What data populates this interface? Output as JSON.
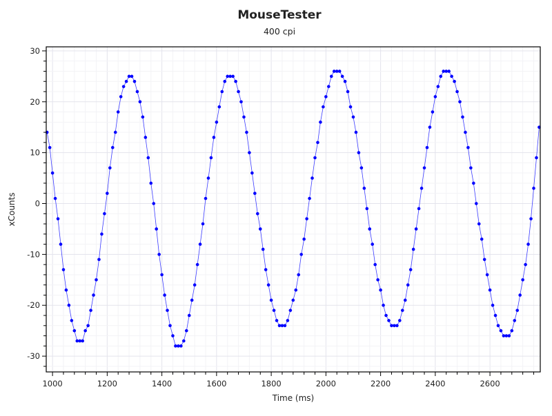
{
  "chart_data": {
    "type": "scatter",
    "title": "MouseTester",
    "subtitle": "400 cpi",
    "xlabel": "Time (ms)",
    "ylabel": "xCounts",
    "xlim": [
      977,
      2784
    ],
    "ylim": [
      -33.1,
      30.8
    ],
    "x_ticks": [
      1000,
      1200,
      1400,
      1600,
      1800,
      2000,
      2200,
      2400,
      2600
    ],
    "y_ticks": [
      -30,
      -20,
      -10,
      0,
      10,
      20,
      30
    ],
    "x_minor_step": 40,
    "y_minor_step": 2,
    "grid": true,
    "legend": "none",
    "colors": {
      "points": "#0000ff",
      "line": "#3b3bff",
      "grid_major": "#e3e3ec",
      "grid_minor": "#f3f3f6",
      "axis": "#000000"
    },
    "series": [
      {
        "name": "xCounts",
        "x": [
          980,
          990,
          1000,
          1010,
          1020,
          1030,
          1040,
          1050,
          1060,
          1070,
          1080,
          1090,
          1100,
          1110,
          1120,
          1130,
          1140,
          1150,
          1160,
          1170,
          1180,
          1190,
          1200,
          1210,
          1220,
          1230,
          1240,
          1250,
          1260,
          1270,
          1280,
          1290,
          1300,
          1310,
          1320,
          1330,
          1340,
          1350,
          1360,
          1370,
          1380,
          1390,
          1400,
          1410,
          1420,
          1430,
          1440,
          1450,
          1460,
          1470,
          1480,
          1490,
          1500,
          1510,
          1520,
          1530,
          1540,
          1550,
          1560,
          1570,
          1580,
          1590,
          1600,
          1610,
          1620,
          1630,
          1640,
          1650,
          1660,
          1670,
          1680,
          1690,
          1700,
          1710,
          1720,
          1730,
          1740,
          1750,
          1760,
          1770,
          1780,
          1790,
          1800,
          1810,
          1820,
          1830,
          1840,
          1850,
          1860,
          1870,
          1880,
          1890,
          1900,
          1910,
          1920,
          1930,
          1940,
          1950,
          1960,
          1970,
          1980,
          1990,
          2000,
          2010,
          2020,
          2030,
          2040,
          2050,
          2060,
          2070,
          2080,
          2090,
          2100,
          2110,
          2120,
          2130,
          2140,
          2150,
          2160,
          2170,
          2180,
          2190,
          2200,
          2210,
          2220,
          2230,
          2240,
          2250,
          2260,
          2270,
          2280,
          2290,
          2300,
          2310,
          2320,
          2330,
          2340,
          2350,
          2360,
          2370,
          2380,
          2390,
          2400,
          2410,
          2420,
          2430,
          2440,
          2450,
          2460,
          2470,
          2480,
          2490,
          2500,
          2510,
          2520,
          2530,
          2540,
          2550,
          2560,
          2570,
          2580,
          2590,
          2600,
          2610,
          2620,
          2630,
          2640,
          2650,
          2660,
          2670,
          2680,
          2690,
          2700,
          2710,
          2720,
          2730,
          2740,
          2750,
          2760,
          2770,
          2780
        ],
        "y": [
          14,
          11,
          6,
          1,
          -3,
          -8,
          -13,
          -17,
          -20,
          -23,
          -25,
          -27,
          -27,
          -27,
          -25,
          -24,
          -21,
          -18,
          -15,
          -11,
          -6,
          -2,
          2,
          7,
          11,
          14,
          18,
          21,
          23,
          24,
          25,
          25,
          24,
          22,
          20,
          17,
          13,
          9,
          4,
          0,
          -5,
          -10,
          -14,
          -18,
          -21,
          -24,
          -26,
          -28,
          -28,
          -28,
          -27,
          -25,
          -22,
          -19,
          -16,
          -12,
          -8,
          -4,
          1,
          5,
          9,
          13,
          16,
          19,
          22,
          24,
          25,
          25,
          25,
          24,
          22,
          20,
          17,
          14,
          10,
          6,
          2,
          -2,
          -5,
          -9,
          -13,
          -16,
          -19,
          -21,
          -23,
          -24,
          -24,
          -24,
          -23,
          -21,
          -19,
          -17,
          -14,
          -10,
          -7,
          -3,
          1,
          5,
          9,
          12,
          16,
          19,
          21,
          23,
          25,
          26,
          26,
          26,
          25,
          24,
          22,
          19,
          17,
          14,
          10,
          7,
          3,
          -1,
          -5,
          -8,
          -12,
          -15,
          -17,
          -20,
          -22,
          -23,
          -24,
          -24,
          -24,
          -23,
          -21,
          -19,
          -16,
          -13,
          -9,
          -5,
          -1,
          3,
          7,
          11,
          15,
          18,
          21,
          23,
          25,
          26,
          26,
          26,
          25,
          24,
          22,
          20,
          17,
          14,
          11,
          7,
          4,
          0,
          -4,
          -7,
          -11,
          -14,
          -17,
          -20,
          -22,
          -24,
          -25,
          -26,
          -26,
          -26,
          -25,
          -23,
          -21,
          -18,
          -15,
          -12,
          -8,
          -3,
          3,
          9,
          15
        ]
      }
    ]
  }
}
